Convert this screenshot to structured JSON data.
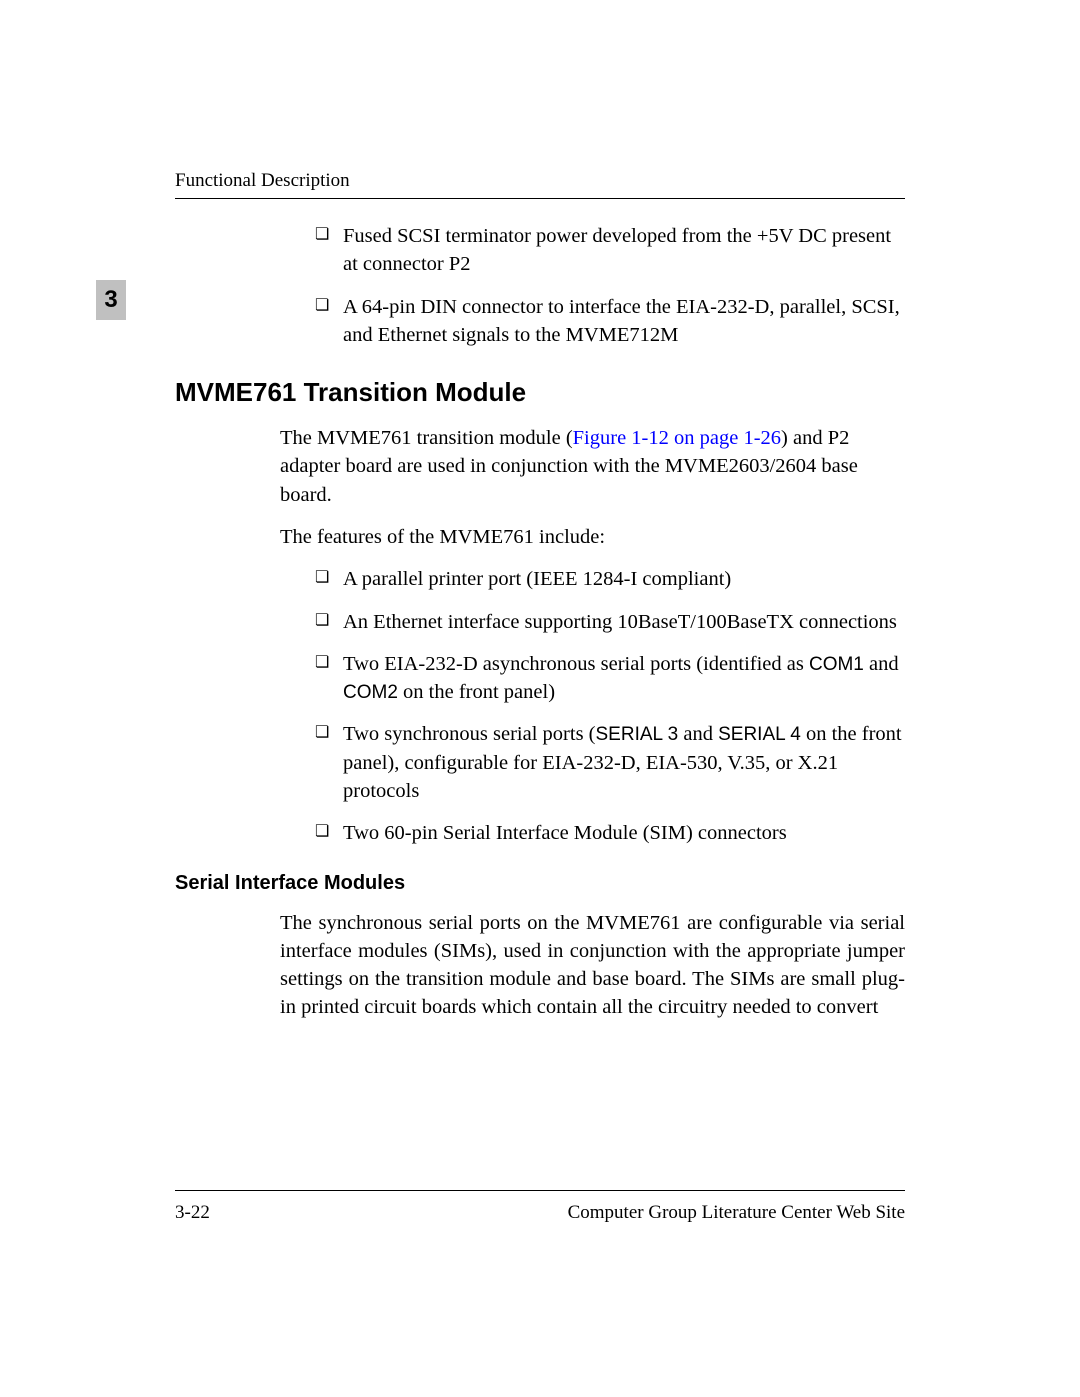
{
  "header": {
    "title": "Functional Description"
  },
  "chapter_tab": "3",
  "top_list": [
    "Fused SCSI terminator power developed from the +5V DC present at connector P2",
    "A 64-pin DIN connector to interface the EIA-232-D, parallel, SCSI, and Ethernet signals to the MVME712M"
  ],
  "section": {
    "heading": "MVME761 Transition Module",
    "para1_pre": "The MVME761 transition module (",
    "para1_link": "Figure 1-12 on page 1-26",
    "para1_post": ") and P2 adapter board are used in conjunction with the MVME2603/2604 base board.",
    "para2": "The features of the MVME761 include:",
    "features": {
      "f1": "A parallel printer port (IEEE 1284-I compliant)",
      "f2": "An Ethernet interface supporting 10BaseT/100BaseTX connections",
      "f3_pre": "Two EIA-232-D asynchronous serial ports (identified as ",
      "f3_com1": "COM1",
      "f3_mid": " and ",
      "f3_com2": "COM2",
      "f3_post": " on the front panel)",
      "f4_pre": "Two synchronous serial ports (",
      "f4_s3": "SERIAL 3",
      "f4_mid": " and ",
      "f4_s4": "SERIAL 4",
      "f4_post": " on the front panel), configurable for EIA-232-D, EIA-530, V.35, or X.21 protocols",
      "f5": "Two 60-pin Serial Interface Module (SIM) connectors"
    }
  },
  "subsection": {
    "heading": "Serial Interface Modules",
    "para": "The synchronous serial ports on the MVME761 are configurable via serial interface modules (SIMs), used in conjunction with the appropriate jumper settings on the transition module and base board. The SIMs are small plug-in printed circuit boards which contain all the circuitry needed to convert"
  },
  "footer": {
    "left": "3-22",
    "right": "Computer Group Literature Center Web Site"
  },
  "colors": {
    "link": "#0000ff",
    "tab_bg": "#c0c0c0",
    "text": "#000000",
    "background": "#ffffff"
  }
}
